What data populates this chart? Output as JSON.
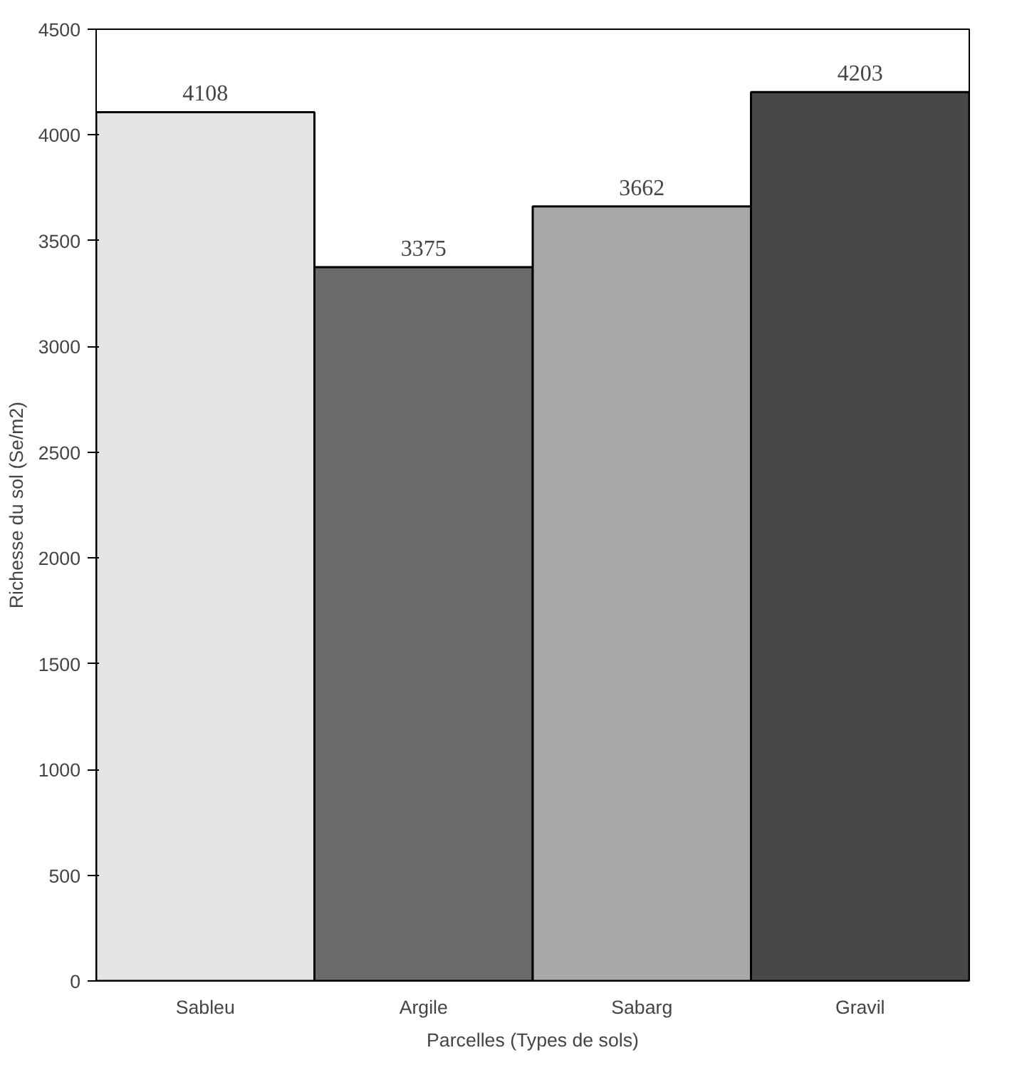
{
  "chart_data": {
    "type": "bar",
    "xlabel": "Parcelles (Types de sols)",
    "ylabel": "Richesse du sol (Se/m2)",
    "categories": [
      "Sableu",
      "Argile",
      "Sabarg",
      "Gravil"
    ],
    "values": [
      4108,
      3375,
      3662,
      4203
    ],
    "colors": [
      "#e4e4e4",
      "#6a6a6a",
      "#a8a8a8",
      "#484848"
    ],
    "ylim": [
      0,
      4500
    ],
    "yticks": [
      0,
      500,
      1000,
      1500,
      2000,
      2500,
      3000,
      3500,
      4000,
      4500
    ],
    "grid": false,
    "data_labels": true
  }
}
